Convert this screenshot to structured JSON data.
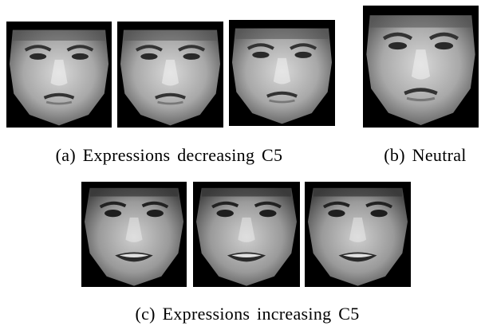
{
  "panels": [
    {
      "caption": "(a) Expressions decreasing C5"
    },
    {
      "caption": "(b) Neutral"
    },
    {
      "caption": "(c) Expressions increasing C5"
    }
  ]
}
